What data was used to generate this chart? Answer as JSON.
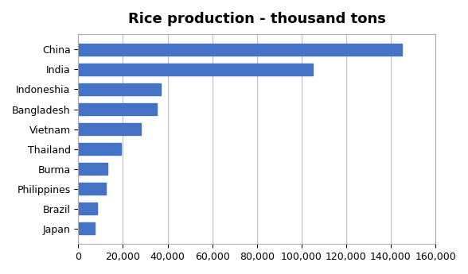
{
  "title": "Rice production - thousand tons",
  "countries": [
    "China",
    "India",
    "Indoneshia",
    "Bangladesh",
    "Vietnam",
    "Thailand",
    "Burma",
    "Philippines",
    "Brazil",
    "Japan"
  ],
  "values": [
    145000,
    105000,
    37000,
    35000,
    28000,
    19000,
    13000,
    12500,
    8500,
    7500
  ],
  "bar_color": "#4472C4",
  "xlim": [
    0,
    160000
  ],
  "xticks": [
    0,
    20000,
    40000,
    60000,
    80000,
    100000,
    120000,
    140000,
    160000
  ],
  "background_color": "#ffffff",
  "grid_color": "#c0c0c0",
  "title_fontsize": 13,
  "label_fontsize": 9
}
